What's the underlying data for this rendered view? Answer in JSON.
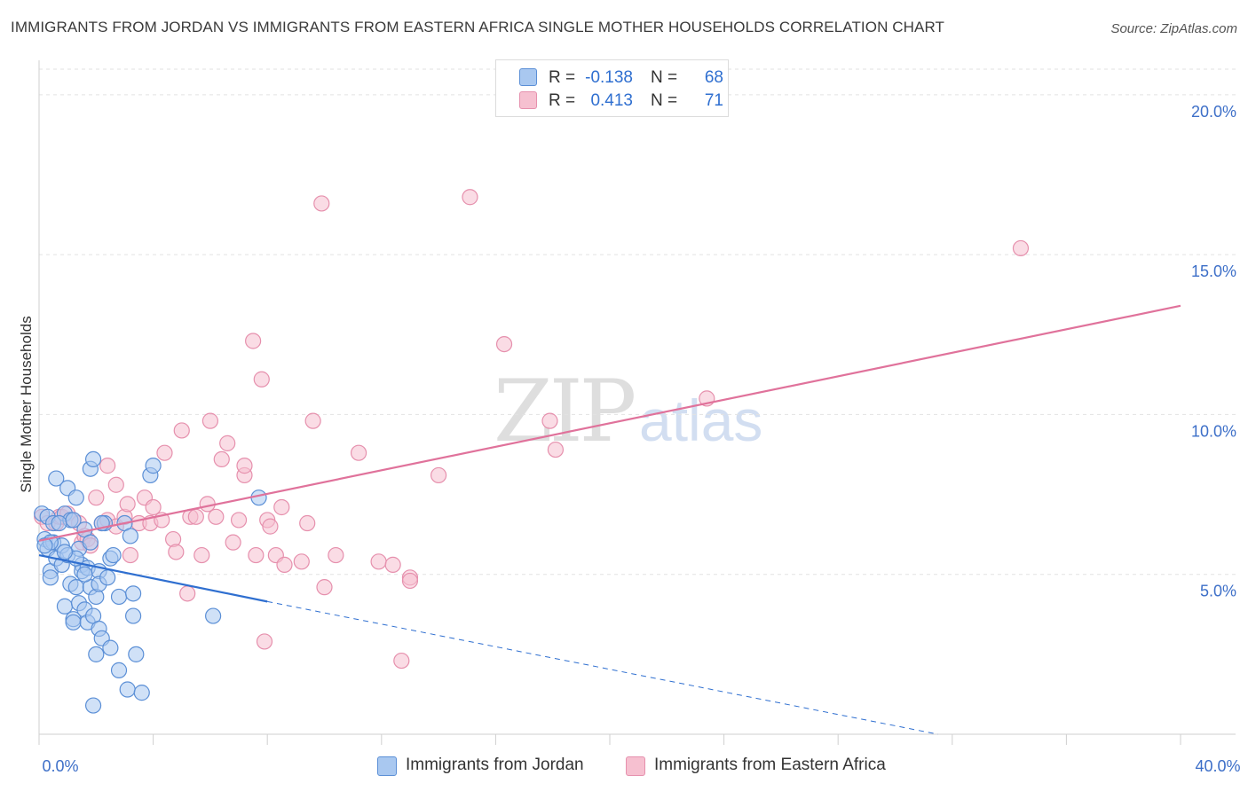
{
  "title": "IMMIGRANTS FROM JORDAN VS IMMIGRANTS FROM EASTERN AFRICA SINGLE MOTHER HOUSEHOLDS CORRELATION CHART",
  "source": "Source: ZipAtlas.com",
  "watermark": {
    "zip": "ZIP",
    "atlas": "atlas"
  },
  "colors": {
    "jordan_fill": "#a9c8f0",
    "jordan_stroke": "#5b8fd6",
    "jordan_line": "#2f6fd0",
    "eafrica_fill": "#f6c0d0",
    "eafrica_stroke": "#e690ad",
    "eafrica_line": "#e0729b",
    "value_blue": "#2f6fd0"
  },
  "legend_top": {
    "rows": [
      {
        "r_label": "R =",
        "r_value": "-0.138",
        "n_label": "N =",
        "n_value": "68"
      },
      {
        "r_label": "R =",
        "r_value": "0.413",
        "n_label": "N =",
        "n_value": "71"
      }
    ]
  },
  "legend_bottom": {
    "jordan": "Immigrants from Jordan",
    "eafrica": "Immigrants from Eastern Africa"
  },
  "chart_data": {
    "type": "scatter",
    "title": "IMMIGRANTS FROM JORDAN VS IMMIGRANTS FROM EASTERN AFRICA SINGLE MOTHER HOUSEHOLDS CORRELATION CHART",
    "xlabel": "",
    "ylabel": "Single Mother Households",
    "xlim": [
      0,
      40
    ],
    "ylim": [
      0,
      20.8
    ],
    "x_tick_labels": [
      "0.0%",
      "40.0%"
    ],
    "y_ticks": [
      5,
      10,
      15,
      20
    ],
    "y_tick_labels": [
      "5.0%",
      "10.0%",
      "15.0%",
      "20.0%"
    ],
    "series": [
      {
        "name": "Immigrants from Jordan",
        "r": -0.138,
        "n": 68,
        "trend": {
          "x0": 0,
          "y0": 5.6,
          "x1": 8.0,
          "y1": 4.15,
          "dash_to_x": 31.5,
          "dash_to_y": 0
        },
        "points": [
          [
            0.1,
            6.9
          ],
          [
            0.2,
            6.1
          ],
          [
            0.3,
            5.8
          ],
          [
            0.3,
            6.8
          ],
          [
            0.4,
            5.1
          ],
          [
            0.4,
            4.9
          ],
          [
            0.5,
            6.6
          ],
          [
            0.5,
            6.0
          ],
          [
            0.6,
            5.5
          ],
          [
            0.6,
            8.0
          ],
          [
            0.8,
            5.3
          ],
          [
            0.8,
            5.9
          ],
          [
            0.9,
            6.9
          ],
          [
            0.9,
            4.0
          ],
          [
            1.0,
            7.7
          ],
          [
            1.0,
            5.6
          ],
          [
            1.1,
            6.7
          ],
          [
            1.1,
            4.7
          ],
          [
            1.2,
            3.6
          ],
          [
            1.2,
            3.5
          ],
          [
            1.3,
            4.6
          ],
          [
            1.3,
            7.4
          ],
          [
            1.4,
            5.8
          ],
          [
            1.4,
            4.1
          ],
          [
            1.5,
            5.3
          ],
          [
            1.5,
            5.1
          ],
          [
            1.6,
            3.9
          ],
          [
            1.6,
            6.4
          ],
          [
            1.7,
            5.2
          ],
          [
            1.7,
            3.5
          ],
          [
            1.8,
            6.0
          ],
          [
            1.8,
            8.3
          ],
          [
            1.8,
            4.6
          ],
          [
            1.9,
            8.6
          ],
          [
            1.9,
            3.7
          ],
          [
            1.9,
            0.9
          ],
          [
            2.0,
            4.3
          ],
          [
            2.0,
            2.5
          ],
          [
            2.1,
            5.1
          ],
          [
            2.1,
            4.7
          ],
          [
            2.1,
            3.3
          ],
          [
            2.2,
            3.0
          ],
          [
            2.3,
            6.6
          ],
          [
            2.4,
            4.9
          ],
          [
            2.5,
            5.5
          ],
          [
            2.5,
            2.7
          ],
          [
            2.8,
            4.3
          ],
          [
            2.8,
            2.0
          ],
          [
            3.0,
            6.6
          ],
          [
            3.1,
            1.4
          ],
          [
            3.2,
            6.2
          ],
          [
            3.3,
            3.7
          ],
          [
            3.3,
            4.4
          ],
          [
            3.4,
            2.5
          ],
          [
            3.6,
            1.3
          ],
          [
            3.9,
            8.1
          ],
          [
            4.0,
            8.4
          ],
          [
            6.1,
            3.7
          ],
          [
            7.7,
            7.4
          ],
          [
            0.7,
            6.6
          ],
          [
            1.2,
            6.7
          ],
          [
            2.2,
            6.6
          ],
          [
            1.3,
            5.5
          ],
          [
            0.9,
            5.7
          ],
          [
            0.4,
            6.0
          ],
          [
            1.6,
            5.0
          ],
          [
            0.2,
            5.9
          ],
          [
            2.6,
            5.6
          ]
        ]
      },
      {
        "name": "Immigrants from Eastern Africa",
        "r": 0.413,
        "n": 71,
        "trend": {
          "x0": 0,
          "y0": 6.05,
          "x1": 40,
          "y1": 13.4
        },
        "points": [
          [
            0.1,
            6.8
          ],
          [
            0.3,
            6.6
          ],
          [
            0.6,
            6.6
          ],
          [
            0.7,
            6.8
          ],
          [
            0.8,
            6.8
          ],
          [
            1.0,
            6.9
          ],
          [
            1.2,
            6.7
          ],
          [
            1.4,
            6.6
          ],
          [
            1.5,
            6.0
          ],
          [
            1.6,
            6.2
          ],
          [
            1.7,
            6.1
          ],
          [
            1.8,
            5.9
          ],
          [
            2.0,
            7.4
          ],
          [
            2.2,
            6.6
          ],
          [
            2.4,
            6.7
          ],
          [
            2.4,
            8.4
          ],
          [
            2.7,
            6.5
          ],
          [
            2.7,
            7.8
          ],
          [
            3.0,
            6.8
          ],
          [
            3.1,
            7.2
          ],
          [
            3.2,
            5.6
          ],
          [
            3.5,
            6.6
          ],
          [
            3.7,
            7.4
          ],
          [
            3.9,
            6.6
          ],
          [
            4.0,
            7.1
          ],
          [
            4.3,
            6.7
          ],
          [
            4.4,
            8.8
          ],
          [
            4.7,
            6.1
          ],
          [
            4.8,
            5.7
          ],
          [
            5.0,
            9.5
          ],
          [
            5.2,
            4.4
          ],
          [
            5.3,
            6.8
          ],
          [
            5.5,
            6.8
          ],
          [
            5.7,
            5.6
          ],
          [
            5.9,
            7.2
          ],
          [
            6.0,
            9.8
          ],
          [
            6.2,
            6.8
          ],
          [
            6.4,
            8.6
          ],
          [
            6.6,
            9.1
          ],
          [
            6.8,
            6.0
          ],
          [
            7.0,
            6.7
          ],
          [
            7.2,
            8.1
          ],
          [
            7.2,
            8.4
          ],
          [
            7.5,
            12.3
          ],
          [
            7.6,
            5.6
          ],
          [
            7.8,
            11.1
          ],
          [
            7.9,
            2.9
          ],
          [
            8.0,
            6.7
          ],
          [
            8.1,
            6.5
          ],
          [
            8.3,
            5.6
          ],
          [
            8.5,
            7.1
          ],
          [
            8.6,
            5.3
          ],
          [
            9.2,
            5.4
          ],
          [
            9.4,
            6.6
          ],
          [
            9.6,
            9.8
          ],
          [
            9.9,
            16.6
          ],
          [
            10.0,
            4.6
          ],
          [
            10.4,
            5.6
          ],
          [
            11.2,
            8.8
          ],
          [
            11.9,
            5.4
          ],
          [
            12.4,
            5.3
          ],
          [
            12.7,
            2.3
          ],
          [
            13.0,
            4.9
          ],
          [
            13.0,
            4.8
          ],
          [
            14.0,
            8.1
          ],
          [
            15.1,
            16.8
          ],
          [
            16.3,
            12.2
          ],
          [
            17.9,
            9.8
          ],
          [
            18.1,
            8.9
          ],
          [
            23.4,
            10.5
          ],
          [
            34.4,
            15.2
          ]
        ]
      }
    ]
  }
}
